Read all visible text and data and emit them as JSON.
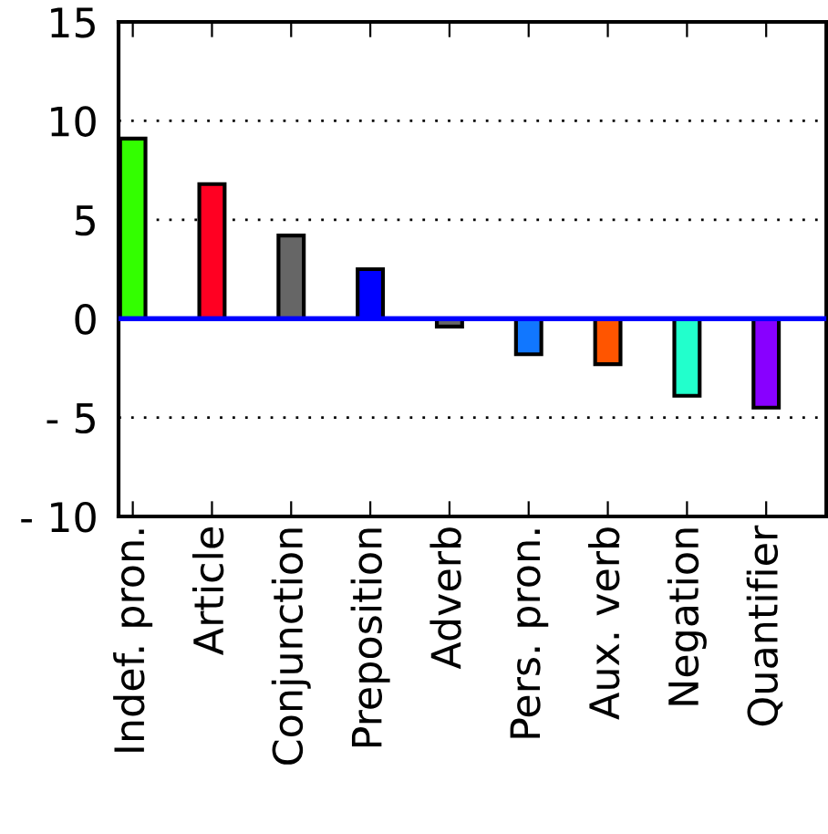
{
  "chart_data": {
    "type": "bar",
    "categories": [
      "Indef. pron.",
      "Article",
      "Conjunction",
      "Preposition",
      "Adverb",
      "Pers. pron.",
      "Aux. verb",
      "Negation",
      "Quantifier"
    ],
    "values": [
      9.1,
      6.8,
      4.2,
      2.5,
      -0.4,
      -1.8,
      -2.3,
      -3.9,
      -4.5
    ],
    "colors": [
      "#33ff00",
      "#ff0022",
      "#666666",
      "#0000ff",
      "#666666",
      "#1177ff",
      "#ff5500",
      "#22ffcc",
      "#8800ff"
    ],
    "ylim": [
      -10,
      15
    ],
    "yticks": [
      {
        "value": -10,
        "label": "- 10"
      },
      {
        "value": -5,
        "label": "- 5"
      },
      0,
      5,
      10,
      15
    ],
    "grid": "y",
    "ref_lines": [
      {
        "axis": "y",
        "value": 0,
        "color": "#0000ff",
        "line_style": "solid"
      }
    ]
  }
}
